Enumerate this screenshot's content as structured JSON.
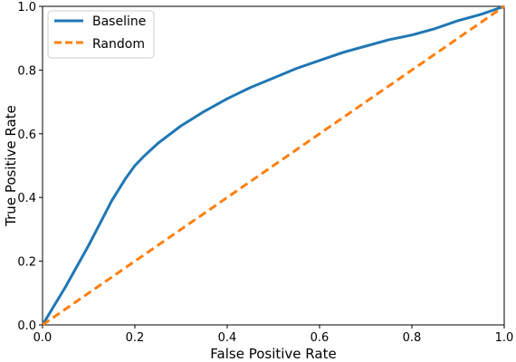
{
  "chart_data": {
    "type": "line",
    "xlabel": "False Positive Rate",
    "ylabel": "True Positive Rate",
    "xlim": [
      0.0,
      1.0
    ],
    "ylim": [
      0.0,
      1.0
    ],
    "xticks": [
      "0.0",
      "0.2",
      "0.4",
      "0.6",
      "0.8",
      "1.0"
    ],
    "yticks": [
      "0.0",
      "0.2",
      "0.4",
      "0.6",
      "0.8",
      "1.0"
    ],
    "grid": false,
    "legend_position": "top-left",
    "series": [
      {
        "name": "Baseline",
        "color": "#1f77b4",
        "style": "solid",
        "x": [
          0.0,
          0.05,
          0.1,
          0.15,
          0.18,
          0.2,
          0.22,
          0.25,
          0.3,
          0.35,
          0.4,
          0.45,
          0.5,
          0.55,
          0.6,
          0.65,
          0.7,
          0.75,
          0.8,
          0.85,
          0.9,
          0.95,
          1.0
        ],
        "y": [
          0.0,
          0.12,
          0.25,
          0.39,
          0.46,
          0.5,
          0.53,
          0.57,
          0.625,
          0.67,
          0.71,
          0.745,
          0.775,
          0.805,
          0.83,
          0.855,
          0.875,
          0.895,
          0.91,
          0.93,
          0.955,
          0.975,
          1.0
        ]
      },
      {
        "name": "Random",
        "color": "#ff7f0e",
        "style": "dashed",
        "x": [
          0.0,
          1.0
        ],
        "y": [
          0.0,
          1.0
        ]
      }
    ]
  }
}
